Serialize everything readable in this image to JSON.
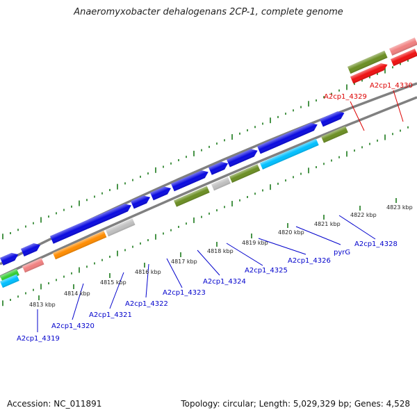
{
  "title": "Anaeromyxobacter dehalogenans 2CP-1, complete genome",
  "footer": {
    "accession": "Accession: NC_011891",
    "summary": "Topology: circular; Length: 5,029,329 bp; Genes: 4,528"
  },
  "colors": {
    "cds_blue": "#0a0ae0",
    "cds_olive": "#6b8e23",
    "cds_gray": "#c0c0c0",
    "cds_orange": "#ff8c00",
    "cds_cyan": "#00bfff",
    "cds_pink": "#f08080",
    "cds_red": "#ee1111",
    "cds_green": "#33cc33",
    "tick_green": "#1a7a1a",
    "axis_gray": "#808080",
    "label_blue": "#0000cc",
    "label_red": "#dd0000"
  },
  "kbp_labels": [
    "4813 kbp",
    "4814 kbp",
    "4815 kbp",
    "4816 kbp",
    "4817 kbp",
    "4818 kbp",
    "4819 kbp",
    "4820 kbp",
    "4821 kbp",
    "4822 kbp",
    "4823 kbp"
  ],
  "gene_labels": [
    {
      "text": "A2cp1_4319",
      "color": "blue"
    },
    {
      "text": "A2cp1_4320",
      "color": "blue"
    },
    {
      "text": "A2cp1_4321",
      "color": "blue"
    },
    {
      "text": "A2cp1_4322",
      "color": "blue"
    },
    {
      "text": "A2cp1_4323",
      "color": "blue"
    },
    {
      "text": "A2cp1_4324",
      "color": "blue"
    },
    {
      "text": "A2cp1_4325",
      "color": "blue"
    },
    {
      "text": "A2cp1_4326",
      "color": "blue"
    },
    {
      "text": "pyrG",
      "color": "blue"
    },
    {
      "text": "A2cp1_4328",
      "color": "blue"
    },
    {
      "text": "A2cp1_4329",
      "color": "red"
    },
    {
      "text": "A2cp1_4330",
      "color": "red"
    }
  ]
}
